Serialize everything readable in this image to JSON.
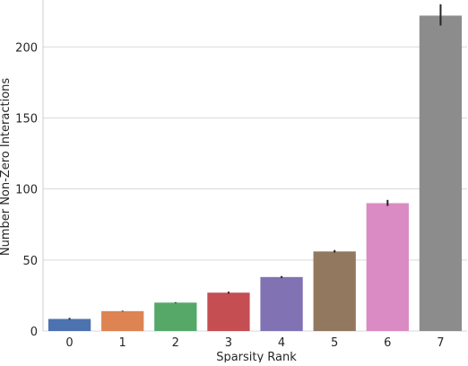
{
  "chart_data": {
    "type": "bar",
    "categories": [
      "0",
      "1",
      "2",
      "3",
      "4",
      "5",
      "6",
      "7"
    ],
    "values": [
      8.5,
      14,
      20,
      27,
      38,
      56,
      90,
      222
    ],
    "error_bars": [
      [
        8.0,
        9.2
      ],
      [
        13.7,
        14.3
      ],
      [
        19.7,
        20.3
      ],
      [
        26.3,
        27.7
      ],
      [
        37.3,
        38.7
      ],
      [
        55.2,
        57.0
      ],
      [
        88.0,
        92.3
      ],
      [
        215.0,
        230.0
      ]
    ],
    "colors": [
      "#4c72b0",
      "#dd8452",
      "#55a868",
      "#c44e52",
      "#8172b3",
      "#937860",
      "#da8bc3",
      "#8c8c8c"
    ],
    "title": "",
    "xlabel": "Sparsity Rank",
    "ylabel": "Number Non-Zero Interactions",
    "ylim": [
      0,
      233
    ],
    "yticks": [
      0,
      50,
      100,
      150,
      200
    ],
    "grid": "horizontal",
    "style": {
      "grid_color": "#d9d9d9",
      "spine_color": "#cccccc",
      "error_color": "#262626"
    }
  }
}
